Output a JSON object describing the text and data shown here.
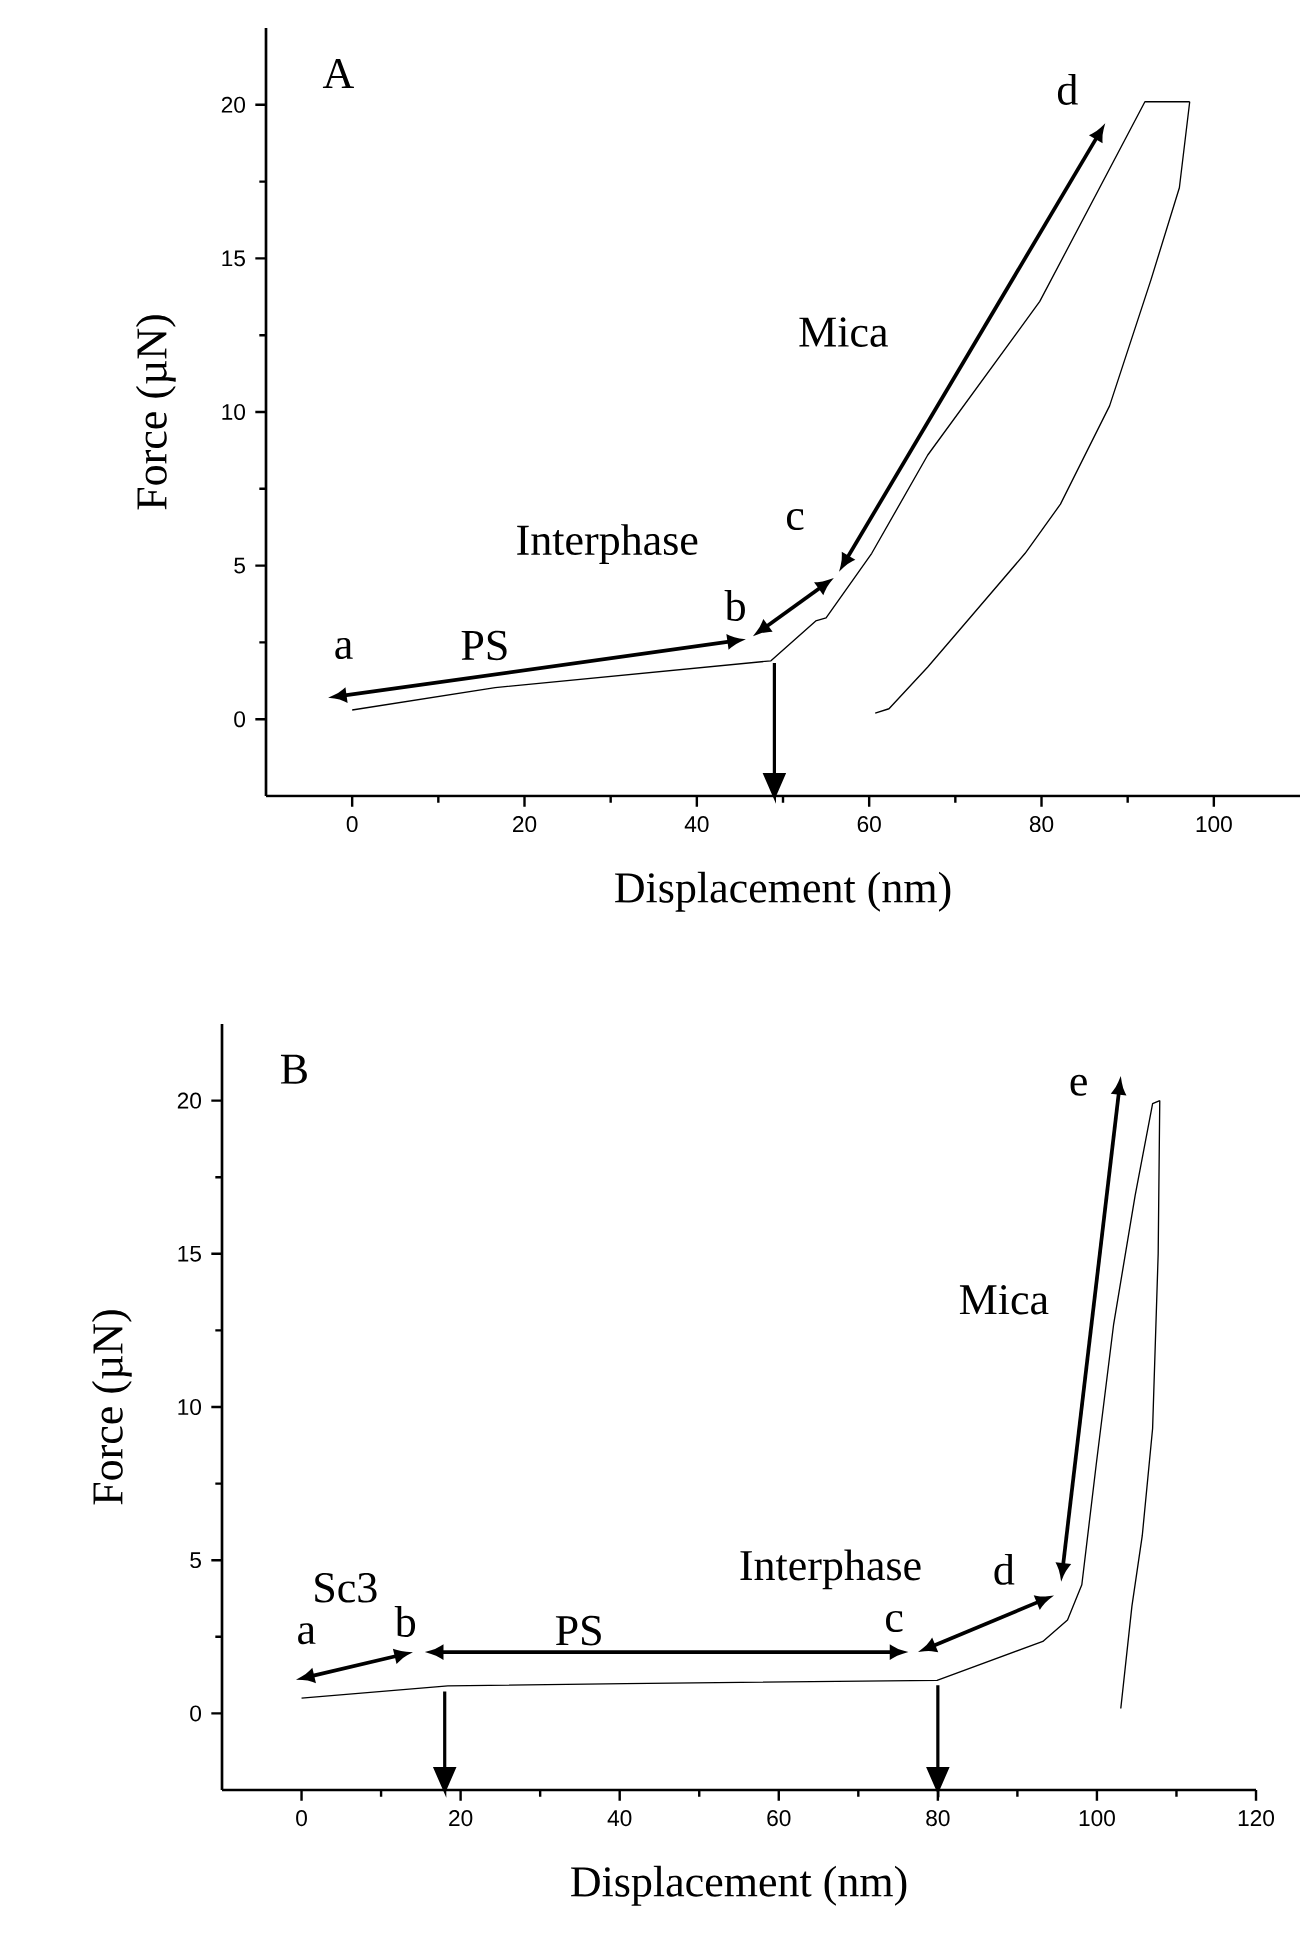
{
  "chart_data": [
    {
      "type": "line",
      "title": "A",
      "xlabel": "Displacement (nm)",
      "ylabel": "Force (µN)",
      "xlim": [
        -10,
        110
      ],
      "ylim": [
        -2.5,
        22.5
      ],
      "xticks": [
        0,
        20,
        40,
        60,
        80,
        100
      ],
      "yticks": [
        0,
        5,
        10,
        15,
        20
      ],
      "series": [
        {
          "color": "#000000",
          "x": [
            0,
            16.6,
            48.6,
            53.8,
            55,
            60.3,
            66.8,
            79.8,
            92,
            97.2
          ],
          "values": [
            0.3,
            1.03,
            1.9,
            3.2,
            3.3,
            5.4,
            8.6,
            13.6,
            20.1,
            20.1
          ]
        },
        {
          "color": "#000000",
          "x": [
            97.2,
            96,
            92.7,
            87.9,
            82.2,
            78.1,
            71.7,
            66.8,
            62.3,
            60.7
          ],
          "values": [
            20.1,
            17.3,
            14.3,
            10.2,
            7.0,
            5.4,
            3.3,
            1.7,
            0.34,
            0.2
          ]
        }
      ],
      "annotations": [
        "a",
        "b",
        "c",
        "d",
        "PS",
        "Interphase",
        "Mica"
      ],
      "ref_lines": [
        {
          "axis": "x",
          "value": 49
        }
      ]
    },
    {
      "type": "line",
      "title": "B",
      "xlabel": "Displacement (nm)",
      "ylabel": "Force (µN)",
      "xlim": [
        -10,
        120
      ],
      "ylim": [
        -2.5,
        22.5
      ],
      "xticks": [
        0,
        20,
        40,
        60,
        80,
        100,
        120
      ],
      "yticks": [
        0,
        5,
        10,
        15,
        20
      ],
      "series": [
        {
          "color": "#000000",
          "x": [
            0,
            18.4,
            40.7,
            79.9,
            93.2,
            96.3,
            98.1,
            99.9,
            102.1,
            104.8,
            107,
            107.9
          ],
          "values": [
            0.5,
            0.9,
            0.97,
            1.08,
            2.35,
            3.05,
            4.2,
            8.1,
            12.7,
            16.9,
            19.9,
            20
          ]
        },
        {
          "color": "#000000",
          "x": [
            107.9,
            107.7,
            107,
            105.7,
            104.4,
            103
          ],
          "values": [
            20,
            15,
            9.3,
            5.8,
            3.5,
            0.16
          ]
        }
      ],
      "annotations": [
        "a",
        "b",
        "c",
        "d",
        "e",
        "Sc3",
        "PS",
        "Interphase",
        "Mica"
      ],
      "ref_lines": [
        {
          "axis": "x",
          "value": 18
        },
        {
          "axis": "x",
          "value": 80
        }
      ]
    }
  ]
}
